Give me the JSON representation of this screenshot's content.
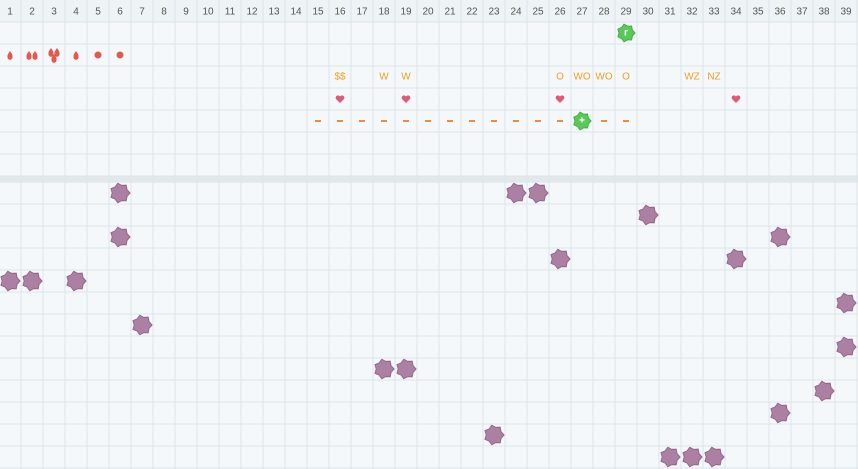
{
  "columns": [
    "1",
    "2",
    "3",
    "4",
    "5",
    "6",
    "7",
    "8",
    "9",
    "10",
    "11",
    "12",
    "13",
    "14",
    "15",
    "16",
    "17",
    "18",
    "19",
    "20",
    "21",
    "22",
    "23",
    "24",
    "25",
    "26",
    "27",
    "28",
    "29",
    "30",
    "31",
    "32",
    "33",
    "34",
    "35",
    "36",
    "37",
    "38",
    "39"
  ],
  "top": {
    "green_icons": [
      {
        "col": 29,
        "row": 0,
        "label": "r"
      },
      {
        "col": 27,
        "row": 4,
        "label": "+"
      }
    ],
    "drops": [
      {
        "col": 1,
        "row": 1,
        "count": 1
      },
      {
        "col": 2,
        "row": 1,
        "count": 2
      },
      {
        "col": 3,
        "row": 1,
        "count": 3
      },
      {
        "col": 4,
        "row": 1,
        "count": 1
      }
    ],
    "dots": [
      {
        "col": 5,
        "row": 1
      },
      {
        "col": 6,
        "row": 1
      }
    ],
    "labels": [
      {
        "col": 16,
        "row": 2,
        "text": "$$"
      },
      {
        "col": 18,
        "row": 2,
        "text": "W"
      },
      {
        "col": 19,
        "row": 2,
        "text": "W"
      },
      {
        "col": 26,
        "row": 2,
        "text": "O"
      },
      {
        "col": 27,
        "row": 2,
        "text": "WO"
      },
      {
        "col": 28,
        "row": 2,
        "text": "WO"
      },
      {
        "col": 29,
        "row": 2,
        "text": "O"
      },
      {
        "col": 32,
        "row": 2,
        "text": "WZ"
      },
      {
        "col": 33,
        "row": 2,
        "text": "NZ"
      }
    ],
    "hearts": [
      {
        "col": 16,
        "row": 3
      },
      {
        "col": 19,
        "row": 3
      },
      {
        "col": 26,
        "row": 3
      },
      {
        "col": 34,
        "row": 3
      }
    ],
    "dashes": [
      {
        "col": 15,
        "row": 4
      },
      {
        "col": 16,
        "row": 4
      },
      {
        "col": 17,
        "row": 4
      },
      {
        "col": 18,
        "row": 4
      },
      {
        "col": 19,
        "row": 4
      },
      {
        "col": 20,
        "row": 4
      },
      {
        "col": 21,
        "row": 4
      },
      {
        "col": 22,
        "row": 4
      },
      {
        "col": 23,
        "row": 4
      },
      {
        "col": 24,
        "row": 4
      },
      {
        "col": 25,
        "row": 4
      },
      {
        "col": 26,
        "row": 4
      },
      {
        "col": 28,
        "row": 4
      },
      {
        "col": 29,
        "row": 4
      }
    ]
  },
  "bottom": {
    "blobs": [
      {
        "col": 6,
        "row": 0
      },
      {
        "col": 24,
        "row": 0
      },
      {
        "col": 25,
        "row": 0
      },
      {
        "col": 30,
        "row": 1
      },
      {
        "col": 6,
        "row": 2
      },
      {
        "col": 36,
        "row": 2
      },
      {
        "col": 26,
        "row": 3
      },
      {
        "col": 34,
        "row": 3
      },
      {
        "col": 1,
        "row": 4
      },
      {
        "col": 2,
        "row": 4
      },
      {
        "col": 4,
        "row": 4
      },
      {
        "col": 39,
        "row": 5
      },
      {
        "col": 7,
        "row": 6
      },
      {
        "col": 39,
        "row": 7
      },
      {
        "col": 18,
        "row": 8
      },
      {
        "col": 19,
        "row": 8
      },
      {
        "col": 38,
        "row": 9
      },
      {
        "col": 36,
        "row": 10
      },
      {
        "col": 23,
        "row": 11
      },
      {
        "col": 31,
        "row": 12
      },
      {
        "col": 32,
        "row": 12
      },
      {
        "col": 33,
        "row": 12
      }
    ]
  }
}
